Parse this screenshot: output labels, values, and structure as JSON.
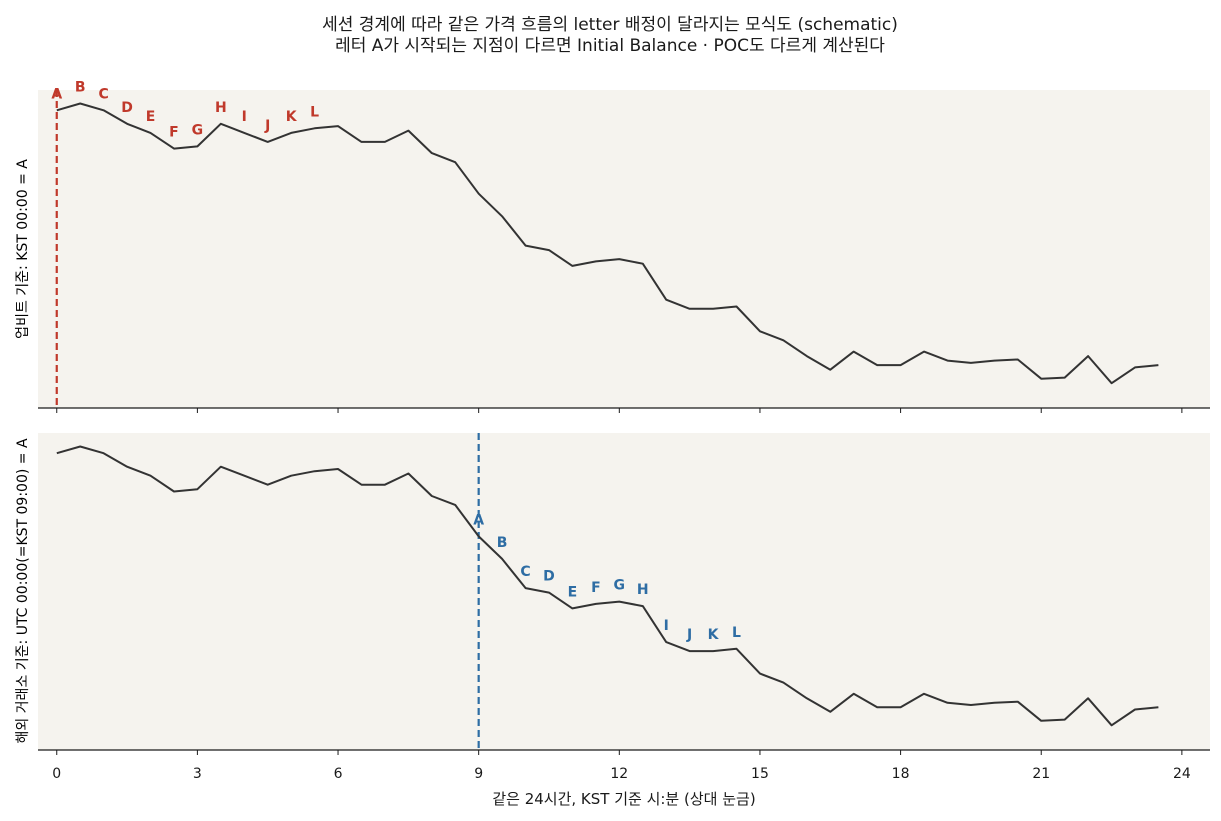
{
  "colors": {
    "background": "#f5f3ee",
    "line": "#333333",
    "upbit": "#c0392b",
    "overseas": "#2e6da4"
  },
  "title": {
    "line1": "세션 경계에 따라 같은 가격 흐름의 letter 배정이 달라지는 모식도 (schematic)",
    "line2": "레터 A가 시작되는 지점이 다르면 Initial Balance · POC도 다르게 계산된다"
  },
  "chart_data": {
    "type": "line",
    "xlabel": "같은 24시간, KST 기준 시:분 (상대 눈금)",
    "xlim": [
      -0.4,
      24.6
    ],
    "xticks": [
      0,
      3,
      6,
      9,
      12,
      15,
      18,
      21,
      24
    ],
    "x": [
      0,
      0.5,
      1,
      1.5,
      2,
      2.5,
      3,
      3.5,
      4,
      4.5,
      5,
      5.5,
      6,
      6.5,
      7,
      7.5,
      8,
      8.5,
      9,
      9.5,
      10,
      10.5,
      11,
      11.5,
      12,
      12.5,
      13,
      13.5,
      14,
      14.5,
      15,
      15.5,
      16,
      16.5,
      17,
      17.5,
      18,
      18.5,
      19,
      19.5,
      20,
      20.5,
      21,
      21.5,
      22,
      22.5,
      23,
      23.5
    ],
    "series": [
      {
        "values": [
          100.0,
          100.3,
          100.0,
          99.4,
          99.0,
          98.3,
          98.4,
          99.4,
          99.0,
          98.6,
          99.0,
          99.2,
          99.3,
          98.6,
          98.6,
          99.1,
          98.1,
          97.7,
          96.3,
          95.3,
          94.0,
          93.8,
          93.1,
          93.3,
          93.4,
          93.2,
          91.6,
          91.2,
          91.2,
          91.3,
          90.2,
          89.8,
          89.1,
          88.5,
          89.3,
          88.7,
          88.7,
          89.3,
          88.9,
          88.8,
          88.9,
          88.95,
          88.1,
          88.15,
          89.1,
          87.9,
          88.6,
          88.7
        ]
      }
    ],
    "ylim": [
      86.8,
      100.9
    ],
    "panels": [
      {
        "ylabel": "업비트 기준: KST 00:00 = A",
        "session_start": 0,
        "letters": [
          "A",
          "B",
          "C",
          "D",
          "E",
          "F",
          "G",
          "H",
          "I",
          "J",
          "K",
          "L"
        ],
        "letter_x": [
          0,
          0.5,
          1,
          1.5,
          2,
          2.5,
          3,
          3.5,
          4,
          4.5,
          5,
          5.5
        ]
      },
      {
        "ylabel": "해외 거래소 기준: UTC 00:00(=KST 09:00) = A",
        "session_start": 9,
        "letters": [
          "A",
          "B",
          "C",
          "D",
          "E",
          "F",
          "G",
          "H",
          "I",
          "J",
          "K",
          "L"
        ],
        "letter_x": [
          9,
          9.5,
          10,
          10.5,
          11,
          11.5,
          12,
          12.5,
          13,
          13.5,
          14,
          14.5
        ]
      }
    ]
  }
}
